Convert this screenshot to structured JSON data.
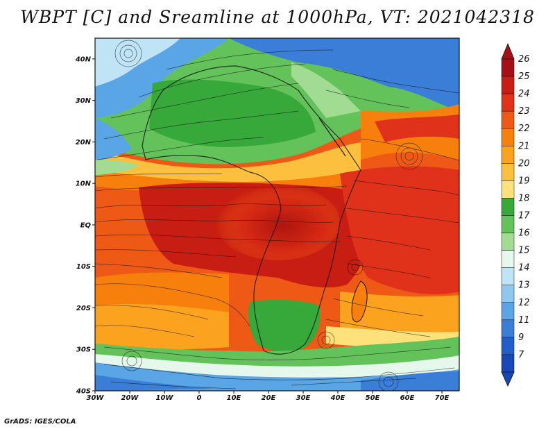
{
  "title": "WBPT [C] and Sreamline at 1000hPa, VT: 2021042318",
  "footer": "GrADS: IGES/COLA",
  "map": {
    "lat_labels": [
      "40N",
      "30N",
      "20N",
      "10N",
      "EQ",
      "10S",
      "20S",
      "30S",
      "40S"
    ],
    "lon_labels": [
      "30W",
      "20W",
      "10W",
      "0",
      "10E",
      "20E",
      "30E",
      "40E",
      "50E",
      "60E",
      "70E"
    ],
    "lat_range": [
      -40,
      45
    ],
    "lon_range": [
      -30,
      75
    ]
  },
  "colorbar": {
    "levels": [
      "26",
      "25",
      "24",
      "23",
      "22",
      "21",
      "20",
      "19",
      "18",
      "17",
      "16",
      "15",
      "14",
      "13",
      "12",
      "11",
      "9",
      "7"
    ],
    "colors": [
      "#a50f15",
      "#c81d12",
      "#e0321a",
      "#ee5a16",
      "#f7800d",
      "#fba31e",
      "#fdc03e",
      "#fee17a",
      "#37a83a",
      "#63c25a",
      "#a2dc92",
      "#e6f7ec",
      "#bee4f6",
      "#8ec8ef",
      "#5aa5e5",
      "#3a7ed8",
      "#2160c9",
      "#1848b7"
    ]
  }
}
